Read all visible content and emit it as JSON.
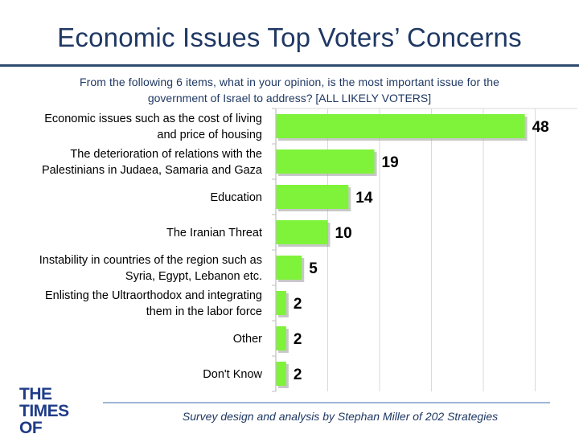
{
  "title": "Economic Issues Top Voters’ Concerns",
  "subtitle_line1": "From the following 6 items, what in your opinion, is the most important issue for the",
  "subtitle_line2": "government of Israel to address? [ALL LIKELY VOTERS]",
  "logo_line1": "THE TIMES",
  "logo_line2": "OF ISRAEL",
  "credit": "Survey design and analysis by Stephan Miller of 202 Strategies",
  "colors": {
    "bar": "#7ff33a",
    "title": "#1f3864",
    "logo": "#1f3c88"
  },
  "chart_data": {
    "type": "bar",
    "orientation": "horizontal",
    "title": "Economic Issues Top Voters’ Concerns",
    "xlabel": "",
    "ylabel": "",
    "xlim": [
      0,
      50
    ],
    "grid": true,
    "legend": "none",
    "categories": [
      [
        "Economic issues such as the cost of living",
        "and price of housing"
      ],
      [
        "The deterioration of relations with the",
        "Palestinians in Judaea, Samaria and Gaza"
      ],
      [
        "Education"
      ],
      [
        "The Iranian Threat"
      ],
      [
        "Instability in countries of the region such as",
        "Syria, Egypt, Lebanon etc."
      ],
      [
        "Enlisting the Ultraorthodox and integrating",
        "them in the labor force"
      ],
      [
        "Other"
      ],
      [
        "Don't Know"
      ]
    ],
    "values": [
      48,
      19,
      14,
      10,
      5,
      2,
      2,
      2
    ]
  }
}
